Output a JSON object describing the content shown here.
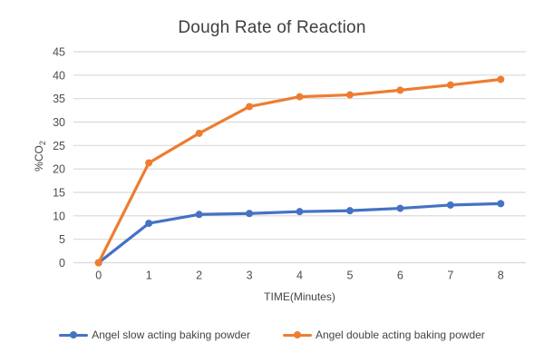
{
  "page": {
    "background_color": "#ffffff"
  },
  "styles": {
    "grid_color": "#d9d9d9",
    "tick_label_color": "#4d4d4d",
    "title_color": "#3f3f3f",
    "axis_title_color": "#444444",
    "series_blue": "#4472C4",
    "series_orange": "#ED7D31"
  },
  "chart_data": {
    "type": "line",
    "title": "Dough Rate of Reaction",
    "xlabel": "TIME(Minutes)",
    "ylabel": "%CO2",
    "ylabel_main": "%CO",
    "ylabel_sub": "2",
    "categories": [
      0,
      1,
      2,
      3,
      4,
      5,
      6,
      7,
      8
    ],
    "y_ticks": [
      0,
      5,
      10,
      15,
      20,
      25,
      30,
      35,
      40,
      45
    ],
    "ylim": [
      0,
      45
    ],
    "grid": true,
    "legend_position": "bottom",
    "series": [
      {
        "name": "Angel slow acting baking powder",
        "color": "#4472C4",
        "values": [
          0,
          8.4,
          10.3,
          10.5,
          10.9,
          11.1,
          11.6,
          12.3,
          12.6
        ]
      },
      {
        "name": "Angel double acting baking powder",
        "color": "#ED7D31",
        "values": [
          0,
          21.3,
          27.6,
          33.3,
          35.4,
          35.8,
          36.8,
          37.9,
          39.1
        ]
      }
    ]
  }
}
